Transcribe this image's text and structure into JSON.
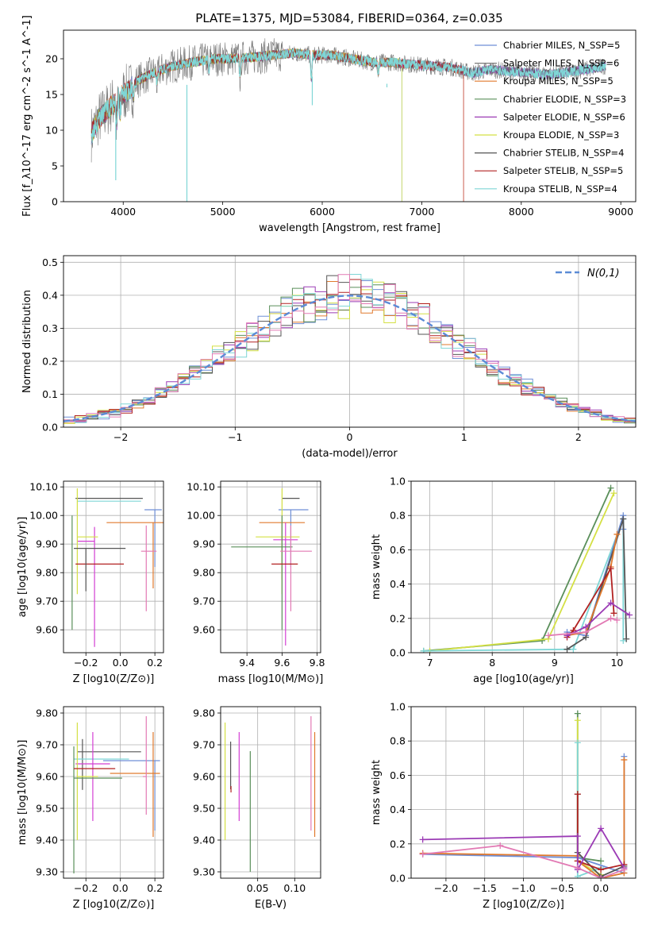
{
  "title": "PLATE=1375, MJD=53084, FIBERID=0364, z=0.035",
  "colors": [
    "#6f8fd6",
    "#7a7a7a",
    "#e07a2e",
    "#5a8f5a",
    "#9b3bb5",
    "#d4e044",
    "#555555",
    "#b22222",
    "#7fd6d6",
    "#e27ab4",
    "#d33fd3",
    "#d9a83e"
  ],
  "chart_data": [
    {
      "type": "line",
      "id": "spectrum",
      "xlabel": "wavelength [Angstrom, rest frame]",
      "ylabel": "Flux [f_λ10^-17 erg cm^-2 s^-1 A^-1]",
      "xlim": [
        3400,
        9150
      ],
      "ylim": [
        0,
        24
      ],
      "xticks": [
        4000,
        5000,
        6000,
        7000,
        8000,
        9000
      ],
      "yticks": [
        0,
        5,
        10,
        15,
        20
      ],
      "grid": false,
      "legend_position": "top-right",
      "legend": [
        "Chabrier MILES, N_SSP=5",
        "Salpeter MILES, N_SSP=6",
        "Kroupa MILES, N_SSP=5",
        "Chabrier ELODIE, N_SSP=3",
        "Salpeter ELODIE, N_SSP=6",
        "Kroupa ELODIE, N_SSP=3",
        "Chabrier STELIB, N_SSP=4",
        "Salpeter STELIB, N_SSP=5",
        "Kroupa STELIB, N_SSP=4"
      ],
      "legend_color_index": [
        0,
        1,
        2,
        3,
        4,
        5,
        6,
        7,
        8
      ],
      "continuum": {
        "x": [
          3680,
          3750,
          3850,
          3950,
          4050,
          4150,
          4300,
          4500,
          4700,
          4900,
          5100,
          5300,
          5500,
          5700,
          5900,
          6100,
          6300,
          6500,
          6700,
          6900,
          7100,
          7300,
          7500,
          7700,
          7900,
          8100,
          8300,
          8500,
          8700,
          8850
        ],
        "y": [
          9.5,
          11.5,
          13.0,
          14.5,
          15.5,
          17.0,
          18.0,
          19.0,
          19.5,
          20.0,
          20.0,
          20.2,
          20.5,
          20.8,
          20.5,
          20.5,
          20.0,
          19.5,
          19.5,
          19.2,
          19.0,
          18.8,
          18.0,
          18.5,
          18.2,
          18.0,
          17.8,
          18.2,
          18.6,
          19.0
        ]
      },
      "model_end_wavelength": [
        8850,
        8850,
        7420,
        6800,
        8850,
        6800,
        8850,
        7420,
        8850
      ]
    },
    {
      "type": "line",
      "id": "residuals",
      "xlabel": "(data-model)/error",
      "ylabel": "Normed distribution",
      "xlim": [
        -2.5,
        2.5
      ],
      "ylim": [
        0,
        0.52
      ],
      "xticks": [
        -2,
        -1,
        0,
        1,
        2
      ],
      "yticks": [
        0.0,
        0.1,
        0.2,
        0.3,
        0.4,
        0.5
      ],
      "grid": true,
      "legend_position": "top-right",
      "legend": [
        "N(0,1)"
      ],
      "gaussian": {
        "mean": 0,
        "sigma": 1
      },
      "histogram_bin_width": 0.1,
      "histogram_colors_index": [
        0,
        2,
        3,
        4,
        5,
        6,
        7,
        8,
        9
      ]
    },
    {
      "type": "scatter",
      "id": "age-vs-z",
      "xlabel": "Z [log10(Z/Z⊙)]",
      "ylabel": "age  [log10(age/yr)]",
      "xlim": [
        -0.33,
        0.25
      ],
      "ylim": [
        9.52,
        10.12
      ],
      "xticks": [
        -0.2,
        0.0,
        0.2
      ],
      "yticks": [
        9.6,
        9.7,
        9.8,
        9.9,
        10.0,
        10.1
      ],
      "grid": true,
      "points": [
        {
          "x": 0.2,
          "y": 10.02,
          "xerr": [
            0.06,
            0.04
          ],
          "yerr": [
            0.2,
            0.0
          ],
          "color_index": 0
        },
        {
          "x": -0.2,
          "y": 10.06,
          "xerr": [
            0.06,
            0.33
          ],
          "yerr": [
            0.0,
            0.0
          ],
          "color_index": 6
        },
        {
          "x": -0.25,
          "y": 10.05,
          "xerr": [
            0.0,
            0.37
          ],
          "yerr": [
            0.0,
            0.0
          ],
          "color_index": 8
        },
        {
          "x": 0.19,
          "y": 9.975,
          "xerr": [
            0.27,
            0.06
          ],
          "yerr": [
            0.23,
            0.0
          ],
          "color_index": 2
        },
        {
          "x": -0.15,
          "y": 9.91,
          "xerr": [
            0.1,
            0.0
          ],
          "yerr": [
            0.37,
            0.05
          ],
          "color_index": 10
        },
        {
          "x": -0.25,
          "y": 9.925,
          "xerr": [
            0.0,
            0.12
          ],
          "yerr": [
            0.2,
            0.17
          ],
          "color_index": 5
        },
        {
          "x": -0.28,
          "y": 9.93,
          "xerr": [
            0.0,
            0.0
          ],
          "yerr": [
            0.33,
            0.07
          ],
          "color_index": 3
        },
        {
          "x": 0.15,
          "y": 9.875,
          "xerr": [
            0.03,
            0.06
          ],
          "yerr": [
            0.21,
            0.09
          ],
          "color_index": 9
        },
        {
          "x": -0.13,
          "y": 9.83,
          "xerr": [
            0.13,
            0.15
          ],
          "yerr": [
            0.0,
            0.0
          ],
          "color_index": 7
        },
        {
          "x": -0.2,
          "y": 9.885,
          "xerr": [
            0.07,
            0.23
          ],
          "yerr": [
            0.15,
            0.0
          ],
          "color_index": 6
        }
      ]
    },
    {
      "type": "scatter",
      "id": "age-vs-mass",
      "xlabel": "mass [log10(M/M⊙)]",
      "ylabel": "",
      "xlim": [
        9.25,
        9.82
      ],
      "ylim": [
        9.52,
        10.12
      ],
      "xticks": [
        9.4,
        9.6,
        9.8
      ],
      "yticks": [
        9.6,
        9.7,
        9.8,
        9.9,
        10.0,
        10.1
      ],
      "grid": true,
      "points": [
        {
          "x": 9.65,
          "y": 10.02,
          "xerr": [
            0.07,
            0.1
          ],
          "yerr": [
            0.2,
            0.0
          ],
          "color_index": 0
        },
        {
          "x": 9.65,
          "y": 10.06,
          "xerr": [
            0.05,
            0.05
          ],
          "yerr": [
            0.0,
            0.0
          ],
          "color_index": 6
        },
        {
          "x": 9.6,
          "y": 9.975,
          "xerr": [
            0.13,
            0.13
          ],
          "yerr": [
            0.2,
            0.0
          ],
          "color_index": 2
        },
        {
          "x": 9.62,
          "y": 9.915,
          "xerr": [
            0.07,
            0.07
          ],
          "yerr": [
            0.37,
            0.06
          ],
          "color_index": 10
        },
        {
          "x": 9.6,
          "y": 9.925,
          "xerr": [
            0.15,
            0.1
          ],
          "yerr": [
            0.2,
            0.17
          ],
          "color_index": 5
        },
        {
          "x": 9.6,
          "y": 9.89,
          "xerr": [
            0.29,
            0.06
          ],
          "yerr": [
            0.29,
            0.11
          ],
          "color_index": 3
        },
        {
          "x": 9.65,
          "y": 9.875,
          "xerr": [
            0.06,
            0.12
          ],
          "yerr": [
            0.21,
            0.09
          ],
          "color_index": 9
        },
        {
          "x": 9.62,
          "y": 9.83,
          "xerr": [
            0.08,
            0.07
          ],
          "yerr": [
            0.0,
            0.0
          ],
          "color_index": 7
        }
      ]
    },
    {
      "type": "line",
      "id": "mass-weight-vs-age",
      "xlabel": "age  [log10(age/yr)]",
      "ylabel": "mass weight",
      "xlim": [
        6.7,
        10.3
      ],
      "ylim": [
        0,
        1.0
      ],
      "xticks": [
        7,
        8,
        9,
        10
      ],
      "yticks": [
        0.0,
        0.2,
        0.4,
        0.6,
        0.8,
        1.0
      ],
      "grid": true,
      "series": [
        {
          "color_index": 3,
          "x": [
            6.9,
            8.8,
            9.9
          ],
          "y": [
            0.01,
            0.07,
            0.96
          ]
        },
        {
          "color_index": 5,
          "x": [
            7.0,
            8.9,
            9.95
          ],
          "y": [
            0.01,
            0.08,
            0.93
          ]
        },
        {
          "color_index": 8,
          "x": [
            6.9,
            9.3,
            10.1,
            10.1
          ],
          "y": [
            0.01,
            0.02,
            0.78,
            0.07
          ]
        },
        {
          "color_index": 0,
          "x": [
            9.2,
            9.5,
            10.1,
            10.1
          ],
          "y": [
            0.12,
            0.1,
            0.8,
            0.72
          ]
        },
        {
          "color_index": 6,
          "x": [
            9.2,
            9.5,
            10.1,
            10.15
          ],
          "y": [
            0.02,
            0.09,
            0.78,
            0.08
          ]
        },
        {
          "color_index": 2,
          "x": [
            9.2,
            9.5,
            9.9,
            10.0
          ],
          "y": [
            0.1,
            0.12,
            0.5,
            0.69
          ]
        },
        {
          "color_index": 7,
          "x": [
            9.2,
            9.3,
            9.9,
            9.95
          ],
          "y": [
            0.09,
            0.13,
            0.49,
            0.23
          ]
        },
        {
          "color_index": 4,
          "x": [
            9.2,
            9.5,
            9.9,
            10.2
          ],
          "y": [
            0.1,
            0.15,
            0.29,
            0.22
          ]
        },
        {
          "color_index": 9,
          "x": [
            8.9,
            9.5,
            9.9,
            10.0
          ],
          "y": [
            0.1,
            0.12,
            0.2,
            0.19
          ]
        }
      ]
    },
    {
      "type": "scatter",
      "id": "mass-vs-z",
      "xlabel": "Z [log10(Z/Z⊙)]",
      "ylabel": "mass [log10(M/M⊙)]",
      "xlim": [
        -0.33,
        0.25
      ],
      "ylim": [
        9.28,
        9.82
      ],
      "xticks": [
        -0.2,
        0.0,
        0.2
      ],
      "yticks": [
        9.3,
        9.4,
        9.5,
        9.6,
        9.7,
        9.8
      ],
      "grid": true,
      "points": [
        {
          "x": 0.2,
          "y": 9.65,
          "xerr": [
            0.3,
            0.03
          ],
          "yerr": [
            0.22,
            0.0
          ],
          "color_index": 0
        },
        {
          "x": -0.22,
          "y": 9.678,
          "xerr": [
            0.03,
            0.34
          ],
          "yerr": [
            0.12,
            0.04
          ],
          "color_index": 6
        },
        {
          "x": -0.25,
          "y": 9.655,
          "xerr": [
            0.02,
            0.3
          ],
          "yerr": [
            0.0,
            0.0
          ],
          "color_index": 8
        },
        {
          "x": 0.19,
          "y": 9.61,
          "xerr": [
            0.25,
            0.04
          ],
          "yerr": [
            0.2,
            0.13
          ],
          "color_index": 2
        },
        {
          "x": -0.16,
          "y": 9.64,
          "xerr": [
            0.1,
            0.1
          ],
          "yerr": [
            0.18,
            0.1
          ],
          "color_index": 10
        },
        {
          "x": -0.25,
          "y": 9.6,
          "xerr": [
            0.0,
            0.12
          ],
          "yerr": [
            0.2,
            0.17
          ],
          "color_index": 5
        },
        {
          "x": -0.27,
          "y": 9.595,
          "xerr": [
            0.0,
            0.28
          ],
          "yerr": [
            0.3,
            0.1
          ],
          "color_index": 3
        },
        {
          "x": 0.15,
          "y": 9.6,
          "xerr": [
            0.02,
            0.0
          ],
          "yerr": [
            0.12,
            0.19
          ],
          "color_index": 9
        },
        {
          "x": -0.15,
          "y": 9.625,
          "xerr": [
            0.12,
            0.12
          ],
          "yerr": [
            0.0,
            0.0
          ],
          "color_index": 7
        }
      ]
    },
    {
      "type": "scatter",
      "id": "mass-vs-ebv",
      "xlabel": "E(B-V)",
      "ylabel": "",
      "xlim": [
        0.0,
        0.135
      ],
      "ylim": [
        9.28,
        9.82
      ],
      "xticks": [
        0.05,
        0.1
      ],
      "yticks": [
        9.3,
        9.4,
        9.5,
        9.6,
        9.7,
        9.8
      ],
      "grid": true,
      "points": [
        {
          "x": 0.0135,
          "y": 9.68,
          "xerr": [
            0,
            0
          ],
          "yerr": [
            0.12,
            0.03
          ],
          "color_index": 6
        },
        {
          "x": 0.014,
          "y": 9.56,
          "xerr": [
            0,
            0
          ],
          "yerr": [
            0.01,
            0.01
          ],
          "color_index": 7
        },
        {
          "x": 0.025,
          "y": 9.64,
          "xerr": [
            0,
            0
          ],
          "yerr": [
            0.18,
            0.1
          ],
          "color_index": 10
        },
        {
          "x": 0.04,
          "y": 9.6,
          "xerr": [
            0,
            0
          ],
          "yerr": [
            0.3,
            0.08
          ],
          "color_index": 3
        },
        {
          "x": 0.006,
          "y": 9.6,
          "xerr": [
            0,
            0
          ],
          "yerr": [
            0.2,
            0.17
          ],
          "color_index": 5
        },
        {
          "x": 0.122,
          "y": 9.65,
          "xerr": [
            0,
            0
          ],
          "yerr": [
            0.22,
            0.14
          ],
          "color_index": 9
        },
        {
          "x": 0.127,
          "y": 9.61,
          "xerr": [
            0,
            0
          ],
          "yerr": [
            0.2,
            0.13
          ],
          "color_index": 2
        }
      ]
    },
    {
      "type": "line",
      "id": "mass-weight-vs-z",
      "xlabel": "Z [log10(Z/Z⊙)]",
      "ylabel": "mass weight",
      "xlim": [
        -2.45,
        0.45
      ],
      "ylim": [
        0,
        1.0
      ],
      "xticks": [
        -2.0,
        -1.5,
        -1.0,
        -0.5,
        0.0
      ],
      "yticks": [
        0.0,
        0.2,
        0.4,
        0.6,
        0.8,
        1.0
      ],
      "grid": true,
      "series": [
        {
          "color_index": 3,
          "x": [
            -0.3,
            -0.3,
            0.0
          ],
          "y": [
            0.96,
            0.12,
            0.1
          ]
        },
        {
          "color_index": 5,
          "x": [
            -0.3,
            -0.3,
            0.0
          ],
          "y": [
            0.92,
            0.1,
            0.02
          ]
        },
        {
          "color_index": 8,
          "x": [
            -0.3,
            -0.3,
            0.0
          ],
          "y": [
            0.79,
            0.01,
            0.06
          ]
        },
        {
          "color_index": 0,
          "x": [
            -2.3,
            -0.3,
            -0.3,
            0.3,
            0.3
          ],
          "y": [
            0.14,
            0.12,
            0.12,
            0.03,
            0.71
          ]
        },
        {
          "color_index": 2,
          "x": [
            -2.3,
            -0.3,
            -0.3,
            0.0,
            0.3,
            0.3
          ],
          "y": [
            0.145,
            0.13,
            0.1,
            0.0,
            0.03,
            0.69
          ]
        },
        {
          "color_index": 6,
          "x": [
            -0.3,
            -0.3,
            0.0,
            0.3
          ],
          "y": [
            0.49,
            0.15,
            0.01,
            0.07
          ]
        },
        {
          "color_index": 7,
          "x": [
            -0.3,
            -0.3,
            0.0,
            0.3
          ],
          "y": [
            0.49,
            0.1,
            0.05,
            0.08
          ]
        },
        {
          "color_index": 4,
          "x": [
            -2.3,
            -0.3,
            -0.3,
            0.0,
            0.3
          ],
          "y": [
            0.225,
            0.245,
            0.05,
            0.29,
            0.06
          ]
        },
        {
          "color_index": 9,
          "x": [
            -2.3,
            -1.3,
            -0.3,
            0.0,
            0.3
          ],
          "y": [
            0.14,
            0.19,
            0.06,
            0.0,
            0.05
          ]
        }
      ]
    }
  ]
}
